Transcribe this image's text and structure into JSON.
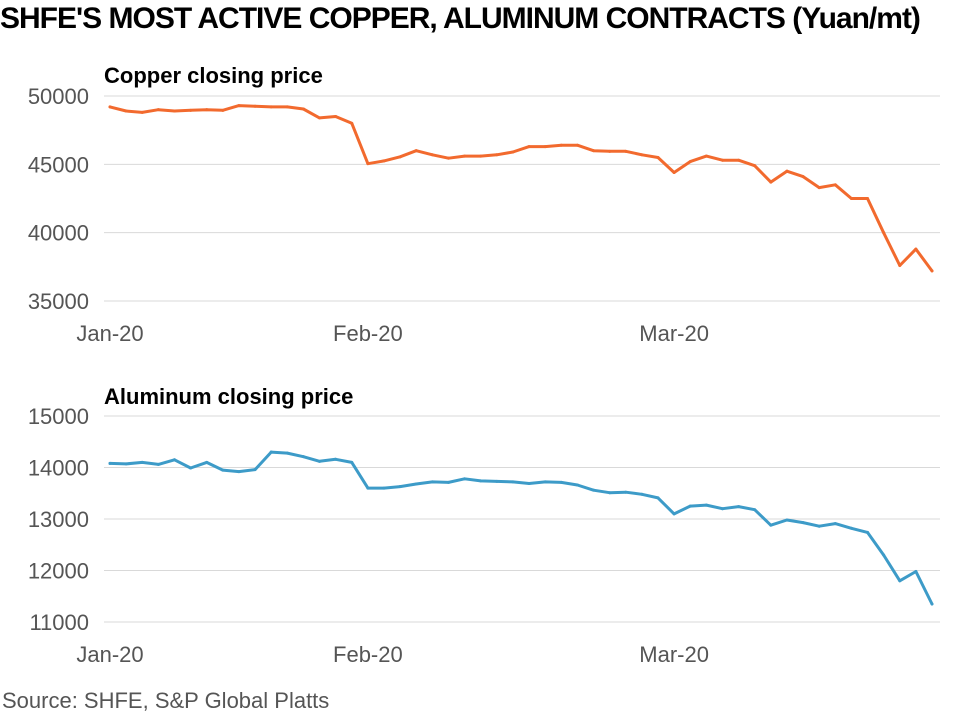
{
  "title": "SHFE'S MOST ACTIVE COPPER, ALUMINUM CONTRACTS (Yuan/mt)",
  "source": "Source: SHFE, S&P Global Platts",
  "chart_data": [
    {
      "type": "line",
      "title": "Copper closing price",
      "color": "#f26a2e",
      "ylim": [
        35000,
        50000
      ],
      "yticks": [
        50000,
        45000,
        40000,
        35000
      ],
      "xtick_labels": [
        "Jan-20",
        "Feb-20",
        "Mar-20"
      ],
      "xtick_positions": [
        0,
        16,
        35
      ],
      "grid": true,
      "x": [
        0,
        1,
        2,
        3,
        4,
        5,
        6,
        7,
        8,
        9,
        10,
        11,
        12,
        13,
        14,
        15,
        16,
        17,
        18,
        19,
        20,
        21,
        22,
        23,
        24,
        25,
        26,
        27,
        28,
        29,
        30,
        31,
        32,
        33,
        34,
        35,
        36,
        37,
        38,
        39,
        40,
        41,
        42,
        43,
        44,
        45,
        46,
        47,
        48,
        49,
        50,
        51
      ],
      "values": [
        49200,
        48900,
        48800,
        49000,
        48900,
        48950,
        49000,
        48950,
        49300,
        49250,
        49200,
        49200,
        49050,
        48400,
        48500,
        48000,
        45050,
        45250,
        45550,
        46000,
        45700,
        45450,
        45600,
        45600,
        45700,
        45900,
        46300,
        46300,
        46400,
        46400,
        46000,
        45950,
        45950,
        45700,
        45500,
        44400,
        45200,
        45600,
        45300,
        45300,
        44900,
        43700,
        44500,
        44100,
        43300,
        43500,
        42500,
        42500,
        40000,
        37600,
        38800,
        37200
      ]
    },
    {
      "type": "line",
      "title": "Aluminum closing price",
      "color": "#3d9bc8",
      "ylim": [
        11000,
        15000
      ],
      "yticks": [
        15000,
        14000,
        13000,
        12000,
        11000
      ],
      "xtick_labels": [
        "Jan-20",
        "Feb-20",
        "Mar-20"
      ],
      "xtick_positions": [
        0,
        16,
        35
      ],
      "grid": true,
      "x": [
        0,
        1,
        2,
        3,
        4,
        5,
        6,
        7,
        8,
        9,
        10,
        11,
        12,
        13,
        14,
        15,
        16,
        17,
        18,
        19,
        20,
        21,
        22,
        23,
        24,
        25,
        26,
        27,
        28,
        29,
        30,
        31,
        32,
        33,
        34,
        35,
        36,
        37,
        38,
        39,
        40,
        41,
        42,
        43,
        44,
        45,
        46,
        47,
        48,
        49,
        50,
        51
      ],
      "values": [
        14080,
        14070,
        14100,
        14060,
        14150,
        13990,
        14100,
        13950,
        13920,
        13960,
        14300,
        14280,
        14210,
        14120,
        14160,
        14100,
        13600,
        13600,
        13630,
        13680,
        13720,
        13710,
        13780,
        13740,
        13730,
        13720,
        13690,
        13720,
        13710,
        13660,
        13560,
        13510,
        13520,
        13480,
        13410,
        13100,
        13250,
        13270,
        13200,
        13240,
        13180,
        12880,
        12980,
        12930,
        12860,
        12910,
        12820,
        12740,
        12300,
        11800,
        11980,
        11350
      ]
    }
  ]
}
